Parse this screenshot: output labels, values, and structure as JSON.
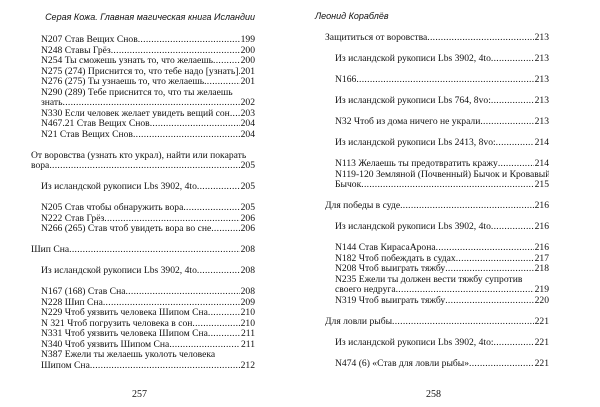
{
  "pages": [
    {
      "header": "Серая Кожа. Главная магическая книга Исландии",
      "page_number": "257",
      "blocks": [
        [
          {
            "level": 1,
            "title": "N207 Став Вещих Снов",
            "page": "199"
          },
          {
            "level": 1,
            "title": "N248 Ставы Грёз",
            "page": "200"
          },
          {
            "level": 1,
            "title": "N254 Ты сможешь узнать то, что желаешь",
            "page": "200"
          },
          {
            "level": 1,
            "title": "N275 (274) Приснится то, что тебе надо [узнать]",
            "page": "201"
          },
          {
            "level": 1,
            "title": "N276 (275) Ты узнаешь то, что желаешь",
            "page": "201"
          },
          {
            "level": 1,
            "title": "N290 (289) Тебе приснится то, что ты желаешь",
            "title_cont": "знать",
            "page": "202"
          },
          {
            "level": 1,
            "title": "N330 Если человек желает увидеть вещий сон",
            "page": "203"
          },
          {
            "level": 1,
            "title": "N467.21 Став Вещих Снов",
            "page": "204"
          },
          {
            "level": 1,
            "title": "N21 Став Вещих Снов",
            "page": "204"
          }
        ],
        [
          {
            "level": 0,
            "title": "От воровства (узнать кто украл), найти или покарать",
            "title_cont": "вора",
            "page": "205"
          }
        ],
        [
          {
            "level": 1,
            "title": "Из исландской рукописи Lbs 3902, 4to",
            "page": "205"
          }
        ],
        [
          {
            "level": 1,
            "title": "N205 Став чтобы обнаружить вора",
            "page": "205"
          },
          {
            "level": 1,
            "title": "N222 Став Грёз",
            "page": "206"
          },
          {
            "level": 1,
            "title": "N266 (265) Став чтоб увидеть вора во сне",
            "page": "206"
          }
        ],
        [
          {
            "level": 0,
            "title": "Шип Сна",
            "page": "208"
          }
        ],
        [
          {
            "level": 1,
            "title": "Из исландской рукописи Lbs 3902, 4to",
            "page": "208"
          }
        ],
        [
          {
            "level": 1,
            "title": "N167 (168) Став Сна",
            "page": "208"
          },
          {
            "level": 1,
            "title": "N228 Шип Сна",
            "page": "209"
          },
          {
            "level": 1,
            "title": "N229 Чтоб уязвить человека Шипом Сна",
            "page": "210"
          },
          {
            "level": 1,
            "title": "N 321 Чтоб погрузить человека в сон",
            "page": "210"
          },
          {
            "level": 1,
            "title": "N331 Чтоб уязвить человека Шипом Сна",
            "page": "211"
          },
          {
            "level": 1,
            "title": "N340 Чтоб уязвить Шипом Сна",
            "page": "211"
          },
          {
            "level": 1,
            "title": "N387 Ежели ты желаешь уколоть человека",
            "title_cont": "Шипом Сна",
            "page": "212"
          }
        ]
      ]
    },
    {
      "header": "Леонид Кораблёв",
      "page_number": "258",
      "blocks": [
        [
          {
            "level": 0,
            "title": "Защититься от воровства",
            "page": "213"
          }
        ],
        [
          {
            "level": 1,
            "title": "Из исландской рукописи Lbs 3902, 4to",
            "page": "213"
          }
        ],
        [
          {
            "level": 1,
            "title": "N166",
            "page": "213"
          }
        ],
        [
          {
            "level": 1,
            "title": "Из исландской рукописи Lbs 764, 8vo:",
            "page": "213"
          }
        ],
        [
          {
            "level": 1,
            "title": "N32 Чтоб из дома ничего не украли",
            "page": "213"
          }
        ],
        [
          {
            "level": 1,
            "title": "Из исландской рукописи Lbs 2413, 8vo:",
            "page": "214"
          }
        ],
        [
          {
            "level": 1,
            "title": "N113 Желаешь ты предотвратить кражу",
            "page": "214"
          },
          {
            "level": 1,
            "title": "N119-120 Земляной (Почвенный) Бычок и Кровавый",
            "title_cont": "Бычок",
            "page": "215"
          }
        ],
        [
          {
            "level": 0,
            "title": "Для победы в суде",
            "page": "216"
          }
        ],
        [
          {
            "level": 1,
            "title": "Из исландской рукописи Lbs 3902, 4to",
            "page": "216"
          }
        ],
        [
          {
            "level": 1,
            "title": "N144 Став КирасаАрона",
            "page": "216"
          },
          {
            "level": 1,
            "title": "N182 Чтоб побеждать в судах",
            "page": "217"
          },
          {
            "level": 1,
            "title": "N208 Чтоб выиграть тяжбу",
            "page": "218"
          },
          {
            "level": 1,
            "title": "N235 Ежели ты должен вести тяжбу супротив",
            "title_cont": "своего недруга",
            "page": "219"
          },
          {
            "level": 1,
            "title": "N319 Чтоб выиграть тяжбу",
            "page": "220"
          }
        ],
        [
          {
            "level": 0,
            "title": "Для ловли рыбы",
            "page": "221"
          }
        ],
        [
          {
            "level": 1,
            "title": "Из исландской рукописи Lbs 3902, 4to:",
            "page": "221"
          }
        ],
        [
          {
            "level": 1,
            "title": "N474 (6) «Став для ловли рыбы»",
            "page": "221"
          }
        ]
      ]
    }
  ]
}
